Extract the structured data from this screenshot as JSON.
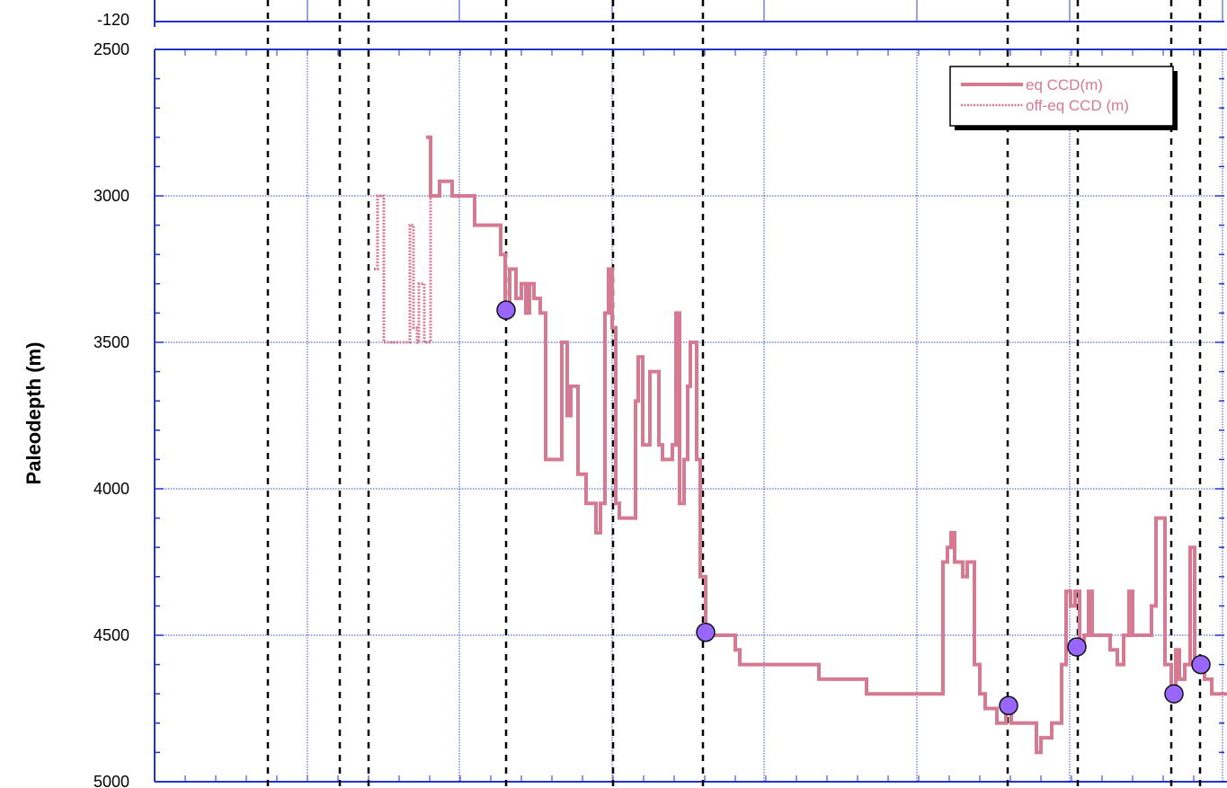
{
  "chart_data": {
    "type": "line",
    "title": "",
    "xlabel": "",
    "ylabel": "Paleodepth (m)",
    "ylim": [
      2500,
      5000
    ],
    "y_inverted": true,
    "yticks": [
      2500,
      3000,
      3500,
      4000,
      4500,
      5000
    ],
    "top_panel_tick": "-120",
    "grid": true,
    "legend": {
      "placement": "top-right",
      "entries": [
        {
          "label": "eq CCD(m)",
          "style": "solid"
        },
        {
          "label": "off-eq CCD (m)",
          "style": "dashed"
        }
      ]
    },
    "colors": {
      "series": "#d57a92",
      "axis": "#2233cc",
      "grid": "#3344cc",
      "markers": "#9966ff",
      "event_lines": "#000000"
    },
    "x_extent": [
      0,
      1365
    ],
    "vertical_event_lines_x": [
      298,
      378,
      410,
      563,
      682,
      782,
      1121,
      1199,
      1303,
      1335
    ],
    "series": [
      {
        "name": "eq CCD(m)",
        "style": "solid",
        "points": [
          [
            474,
            2800
          ],
          [
            479,
            2800
          ],
          [
            479,
            3000
          ],
          [
            489,
            3000
          ],
          [
            489,
            2950
          ],
          [
            503,
            2950
          ],
          [
            503,
            3000
          ],
          [
            528,
            3000
          ],
          [
            528,
            3100
          ],
          [
            557,
            3100
          ],
          [
            557,
            3200
          ],
          [
            562,
            3200
          ],
          [
            562,
            3400
          ],
          [
            567,
            3400
          ],
          [
            567,
            3250
          ],
          [
            574,
            3250
          ],
          [
            574,
            3350
          ],
          [
            580,
            3350
          ],
          [
            580,
            3300
          ],
          [
            585,
            3300
          ],
          [
            585,
            3400
          ],
          [
            589,
            3400
          ],
          [
            589,
            3300
          ],
          [
            594,
            3300
          ],
          [
            594,
            3350
          ],
          [
            601,
            3350
          ],
          [
            601,
            3400
          ],
          [
            607,
            3400
          ],
          [
            607,
            3900
          ],
          [
            625,
            3900
          ],
          [
            625,
            3500
          ],
          [
            631,
            3500
          ],
          [
            631,
            3750
          ],
          [
            635,
            3750
          ],
          [
            635,
            3650
          ],
          [
            643,
            3650
          ],
          [
            643,
            3950
          ],
          [
            652,
            3950
          ],
          [
            652,
            4050
          ],
          [
            663,
            4050
          ],
          [
            663,
            4150
          ],
          [
            668,
            4150
          ],
          [
            668,
            4050
          ],
          [
            673,
            4050
          ],
          [
            673,
            3400
          ],
          [
            677,
            3400
          ],
          [
            677,
            3250
          ],
          [
            681,
            3250
          ],
          [
            681,
            3450
          ],
          [
            685,
            3450
          ],
          [
            685,
            4050
          ],
          [
            689,
            4050
          ],
          [
            689,
            4100
          ],
          [
            707,
            4100
          ],
          [
            707,
            3700
          ],
          [
            710,
            3700
          ],
          [
            710,
            3550
          ],
          [
            715,
            3550
          ],
          [
            715,
            3850
          ],
          [
            723,
            3850
          ],
          [
            723,
            3600
          ],
          [
            733,
            3600
          ],
          [
            733,
            3850
          ],
          [
            737,
            3850
          ],
          [
            737,
            3900
          ],
          [
            748,
            3900
          ],
          [
            748,
            3850
          ],
          [
            752,
            3850
          ],
          [
            752,
            3400
          ],
          [
            756,
            3400
          ],
          [
            756,
            4050
          ],
          [
            761,
            4050
          ],
          [
            761,
            3900
          ],
          [
            765,
            3900
          ],
          [
            765,
            3650
          ],
          [
            768,
            3650
          ],
          [
            768,
            3500
          ],
          [
            775,
            3500
          ],
          [
            775,
            3900
          ],
          [
            779,
            3900
          ],
          [
            779,
            4300
          ],
          [
            785,
            4300
          ],
          [
            785,
            4500
          ],
          [
            818,
            4500
          ],
          [
            818,
            4550
          ],
          [
            823,
            4550
          ],
          [
            823,
            4600
          ],
          [
            911,
            4600
          ],
          [
            911,
            4650
          ],
          [
            964,
            4650
          ],
          [
            964,
            4700
          ],
          [
            1049,
            4700
          ],
          [
            1049,
            4250
          ],
          [
            1054,
            4250
          ],
          [
            1054,
            4200
          ],
          [
            1058,
            4200
          ],
          [
            1058,
            4150
          ],
          [
            1062,
            4150
          ],
          [
            1062,
            4250
          ],
          [
            1071,
            4250
          ],
          [
            1071,
            4300
          ],
          [
            1076,
            4300
          ],
          [
            1076,
            4250
          ],
          [
            1084,
            4250
          ],
          [
            1084,
            4600
          ],
          [
            1090,
            4600
          ],
          [
            1090,
            4700
          ],
          [
            1096,
            4700
          ],
          [
            1096,
            4750
          ],
          [
            1109,
            4750
          ],
          [
            1109,
            4800
          ],
          [
            1119,
            4800
          ],
          [
            1119,
            4750
          ],
          [
            1125,
            4750
          ],
          [
            1125,
            4800
          ],
          [
            1153,
            4800
          ],
          [
            1153,
            4900
          ],
          [
            1158,
            4900
          ],
          [
            1158,
            4850
          ],
          [
            1170,
            4850
          ],
          [
            1170,
            4800
          ],
          [
            1181,
            4800
          ],
          [
            1181,
            4600
          ],
          [
            1186,
            4600
          ],
          [
            1186,
            4350
          ],
          [
            1191,
            4350
          ],
          [
            1191,
            4400
          ],
          [
            1196,
            4400
          ],
          [
            1196,
            4350
          ],
          [
            1201,
            4350
          ],
          [
            1201,
            4550
          ],
          [
            1206,
            4550
          ],
          [
            1206,
            4500
          ],
          [
            1211,
            4500
          ],
          [
            1211,
            4350
          ],
          [
            1215,
            4350
          ],
          [
            1215,
            4500
          ],
          [
            1235,
            4500
          ],
          [
            1235,
            4550
          ],
          [
            1243,
            4550
          ],
          [
            1243,
            4600
          ],
          [
            1250,
            4600
          ],
          [
            1250,
            4500
          ],
          [
            1256,
            4500
          ],
          [
            1256,
            4350
          ],
          [
            1260,
            4350
          ],
          [
            1260,
            4500
          ],
          [
            1281,
            4500
          ],
          [
            1281,
            4400
          ],
          [
            1286,
            4400
          ],
          [
            1286,
            4100
          ],
          [
            1296,
            4100
          ],
          [
            1296,
            4600
          ],
          [
            1303,
            4600
          ],
          [
            1303,
            4700
          ],
          [
            1308,
            4700
          ],
          [
            1308,
            4550
          ],
          [
            1312,
            4550
          ],
          [
            1312,
            4650
          ],
          [
            1318,
            4650
          ],
          [
            1318,
            4600
          ],
          [
            1324,
            4600
          ],
          [
            1324,
            4200
          ],
          [
            1329,
            4200
          ],
          [
            1329,
            4600
          ],
          [
            1340,
            4600
          ],
          [
            1340,
            4650
          ],
          [
            1348,
            4650
          ],
          [
            1348,
            4700
          ],
          [
            1365,
            4700
          ]
        ]
      },
      {
        "name": "off-eq CCD (m)",
        "style": "dashed",
        "points": [
          [
            416,
            3250
          ],
          [
            420,
            3250
          ],
          [
            420,
            3000
          ],
          [
            427,
            3000
          ],
          [
            427,
            3500
          ],
          [
            456,
            3500
          ],
          [
            456,
            3100
          ],
          [
            460,
            3100
          ],
          [
            460,
            3450
          ],
          [
            464,
            3450
          ],
          [
            464,
            3500
          ],
          [
            466,
            3500
          ],
          [
            466,
            3300
          ],
          [
            472,
            3300
          ],
          [
            472,
            3500
          ],
          [
            479,
            3500
          ],
          [
            479,
            3000
          ]
        ]
      }
    ],
    "markers": [
      {
        "x": 563,
        "y": 3390
      },
      {
        "x": 785,
        "y": 4490
      },
      {
        "x": 1122,
        "y": 4740
      },
      {
        "x": 1198,
        "y": 4540
      },
      {
        "x": 1306,
        "y": 4700
      },
      {
        "x": 1336,
        "y": 4600
      }
    ]
  }
}
